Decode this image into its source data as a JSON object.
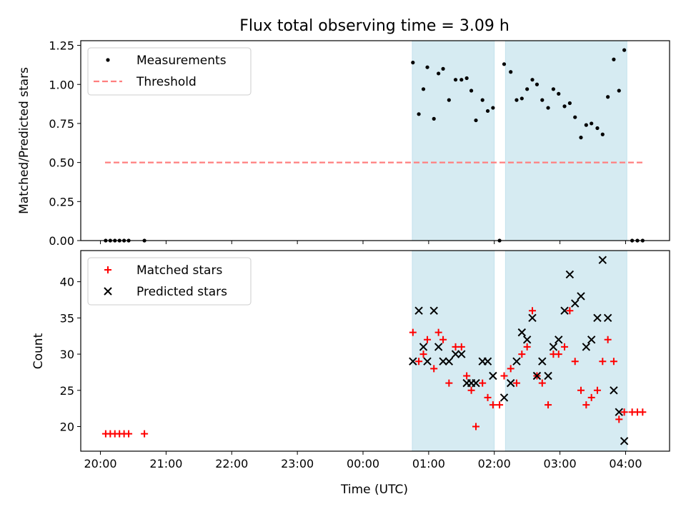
{
  "figure": {
    "title": "Flux total observing time = 3.09 h"
  },
  "chart_data": [
    {
      "type": "scatter",
      "panel": "top",
      "title": "Flux total observing time = 3.09 h",
      "xlabel": "",
      "ylabel": "Matched/Predicted stars",
      "x_unit": "hours since 20:00 UTC",
      "xlim": [
        -0.3,
        8.67
      ],
      "ylim": [
        0.0,
        1.28
      ],
      "yticks": [
        "0.00",
        "0.25",
        "0.50",
        "0.75",
        "1.00",
        "1.25"
      ],
      "shaded_intervals": [
        [
          4.75,
          6.0
        ],
        [
          6.17,
          8.02
        ]
      ],
      "legend_position": "upper left",
      "series": [
        {
          "name": "Measurements",
          "style": "dots",
          "color": "#000000",
          "points": [
            [
              0.08,
              0.0
            ],
            [
              0.15,
              0.0
            ],
            [
              0.22,
              0.0
            ],
            [
              0.29,
              0.0
            ],
            [
              0.36,
              0.0
            ],
            [
              0.43,
              0.0
            ],
            [
              0.67,
              0.0
            ],
            [
              4.76,
              1.14
            ],
            [
              4.85,
              0.81
            ],
            [
              4.92,
              0.97
            ],
            [
              4.98,
              1.11
            ],
            [
              5.08,
              0.78
            ],
            [
              5.15,
              1.07
            ],
            [
              5.22,
              1.1
            ],
            [
              5.31,
              0.9
            ],
            [
              5.41,
              1.03
            ],
            [
              5.5,
              1.03
            ],
            [
              5.58,
              1.04
            ],
            [
              5.65,
              0.96
            ],
            [
              5.72,
              0.77
            ],
            [
              5.82,
              0.9
            ],
            [
              5.9,
              0.83
            ],
            [
              5.98,
              0.85
            ],
            [
              6.08,
              0.0
            ],
            [
              6.15,
              1.13
            ],
            [
              6.25,
              1.08
            ],
            [
              6.34,
              0.9
            ],
            [
              6.42,
              0.91
            ],
            [
              6.5,
              0.97
            ],
            [
              6.58,
              1.03
            ],
            [
              6.65,
              1.0
            ],
            [
              6.73,
              0.9
            ],
            [
              6.82,
              0.85
            ],
            [
              6.9,
              0.97
            ],
            [
              6.98,
              0.94
            ],
            [
              7.07,
              0.86
            ],
            [
              7.15,
              0.88
            ],
            [
              7.23,
              0.79
            ],
            [
              7.32,
              0.66
            ],
            [
              7.4,
              0.74
            ],
            [
              7.48,
              0.75
            ],
            [
              7.57,
              0.72
            ],
            [
              7.65,
              0.68
            ],
            [
              7.73,
              0.92
            ],
            [
              7.82,
              1.16
            ],
            [
              7.9,
              0.96
            ],
            [
              7.98,
              1.22
            ],
            [
              8.1,
              0.0
            ],
            [
              8.18,
              0.0
            ],
            [
              8.26,
              0.0
            ]
          ]
        },
        {
          "name": "Threshold",
          "style": "dashed",
          "color": "#ff7f7f",
          "points": [
            [
              0.07,
              0.5
            ],
            [
              8.27,
              0.5
            ]
          ]
        }
      ]
    },
    {
      "type": "scatter",
      "panel": "bottom",
      "xlabel": "Time (UTC)",
      "ylabel": "Count",
      "x_unit": "hours since 20:00 UTC",
      "xlim": [
        -0.3,
        8.67
      ],
      "ylim": [
        16.6,
        44.3
      ],
      "yticks": [
        "20",
        "25",
        "30",
        "35",
        "40"
      ],
      "xticks": [
        "20:00",
        "21:00",
        "22:00",
        "23:00",
        "00:00",
        "01:00",
        "02:00",
        "03:00",
        "04:00"
      ],
      "shaded_intervals": [
        [
          4.75,
          6.0
        ],
        [
          6.17,
          8.02
        ]
      ],
      "legend_position": "upper left",
      "series": [
        {
          "name": "Matched stars",
          "style": "plus",
          "color": "#ff0000",
          "points": [
            [
              0.08,
              19
            ],
            [
              0.15,
              19
            ],
            [
              0.22,
              19
            ],
            [
              0.29,
              19
            ],
            [
              0.36,
              19
            ],
            [
              0.43,
              19
            ],
            [
              0.67,
              19
            ],
            [
              4.76,
              33
            ],
            [
              4.85,
              29
            ],
            [
              4.92,
              30
            ],
            [
              4.98,
              32
            ],
            [
              5.08,
              28
            ],
            [
              5.15,
              33
            ],
            [
              5.22,
              32
            ],
            [
              5.31,
              26
            ],
            [
              5.41,
              31
            ],
            [
              5.5,
              31
            ],
            [
              5.58,
              27
            ],
            [
              5.65,
              25
            ],
            [
              5.72,
              20
            ],
            [
              5.82,
              26
            ],
            [
              5.9,
              24
            ],
            [
              5.98,
              23
            ],
            [
              6.08,
              23
            ],
            [
              6.15,
              27
            ],
            [
              6.25,
              28
            ],
            [
              6.34,
              26
            ],
            [
              6.42,
              30
            ],
            [
              6.5,
              31
            ],
            [
              6.58,
              36
            ],
            [
              6.65,
              27
            ],
            [
              6.73,
              26
            ],
            [
              6.82,
              23
            ],
            [
              6.9,
              30
            ],
            [
              6.98,
              30
            ],
            [
              7.07,
              31
            ],
            [
              7.15,
              36
            ],
            [
              7.23,
              29
            ],
            [
              7.32,
              25
            ],
            [
              7.4,
              23
            ],
            [
              7.48,
              24
            ],
            [
              7.57,
              25
            ],
            [
              7.65,
              29
            ],
            [
              7.73,
              32
            ],
            [
              7.82,
              29
            ],
            [
              7.9,
              21
            ],
            [
              7.98,
              22
            ],
            [
              8.1,
              22
            ],
            [
              8.18,
              22
            ],
            [
              8.26,
              22
            ]
          ]
        },
        {
          "name": "Predicted stars",
          "style": "x",
          "color": "#000000",
          "points": [
            [
              4.76,
              29
            ],
            [
              4.85,
              36
            ],
            [
              4.92,
              31
            ],
            [
              4.98,
              29
            ],
            [
              5.08,
              36
            ],
            [
              5.15,
              31
            ],
            [
              5.22,
              29
            ],
            [
              5.31,
              29
            ],
            [
              5.41,
              30
            ],
            [
              5.5,
              30
            ],
            [
              5.58,
              26
            ],
            [
              5.65,
              26
            ],
            [
              5.72,
              26
            ],
            [
              5.82,
              29
            ],
            [
              5.9,
              29
            ],
            [
              5.98,
              27
            ],
            [
              6.15,
              24
            ],
            [
              6.25,
              26
            ],
            [
              6.34,
              29
            ],
            [
              6.42,
              33
            ],
            [
              6.5,
              32
            ],
            [
              6.58,
              35
            ],
            [
              6.65,
              27
            ],
            [
              6.73,
              29
            ],
            [
              6.82,
              27
            ],
            [
              6.9,
              31
            ],
            [
              6.98,
              32
            ],
            [
              7.07,
              36
            ],
            [
              7.15,
              41
            ],
            [
              7.23,
              37
            ],
            [
              7.32,
              38
            ],
            [
              7.4,
              31
            ],
            [
              7.48,
              32
            ],
            [
              7.57,
              35
            ],
            [
              7.65,
              43
            ],
            [
              7.73,
              35
            ],
            [
              7.82,
              25
            ],
            [
              7.9,
              22
            ],
            [
              7.98,
              18
            ]
          ]
        }
      ]
    }
  ]
}
